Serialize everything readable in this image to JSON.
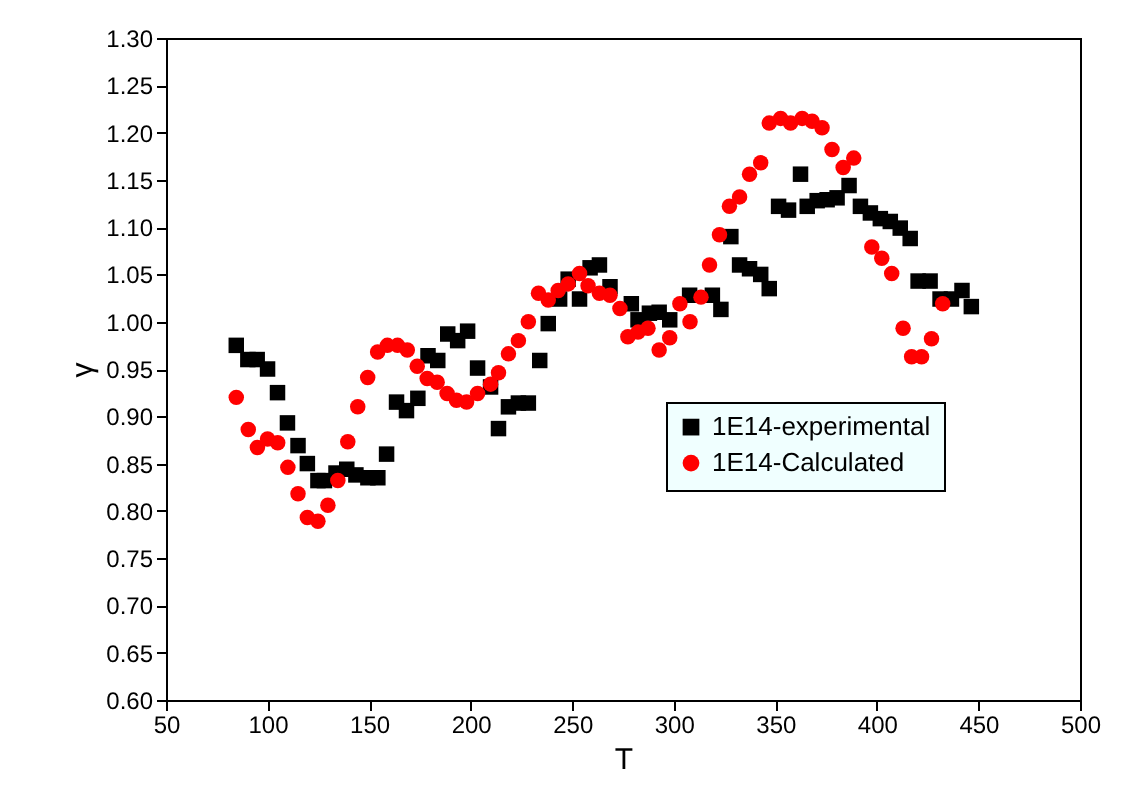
{
  "chart_data": {
    "type": "scatter",
    "xlabel": "T",
    "ylabel": "γ",
    "xlim": [
      50,
      500
    ],
    "ylim": [
      0.6,
      1.3
    ],
    "xticks": [
      50,
      100,
      150,
      200,
      250,
      300,
      350,
      400,
      450,
      500
    ],
    "yticks": [
      {
        "value": 0.6,
        "label": "0.60"
      },
      {
        "value": 0.65,
        "label": "0.65"
      },
      {
        "value": 0.7,
        "label": "0.70"
      },
      {
        "value": 0.75,
        "label": "0.75"
      },
      {
        "value": 0.8,
        "label": "0.80"
      },
      {
        "value": 0.85,
        "label": "0.85"
      },
      {
        "value": 0.9,
        "label": "0.90"
      },
      {
        "value": 0.95,
        "label": "0.95"
      },
      {
        "value": 1.0,
        "label": "1.00"
      },
      {
        "value": 1.05,
        "label": "1.05"
      },
      {
        "value": 1.1,
        "label": "1.10"
      },
      {
        "value": 1.15,
        "label": "1.15"
      },
      {
        "value": 1.2,
        "label": "1.20"
      },
      {
        "value": 1.25,
        "label": "1.25"
      },
      {
        "value": 1.3,
        "label": "1.30"
      }
    ],
    "legend": "right",
    "grid": false,
    "series": [
      {
        "name": "1E14-experimental",
        "color": "#000000",
        "marker": "square",
        "x": [
          84.6,
          90.3,
          94.9,
          100,
          104.9,
          109.8,
          115,
          119.6,
          124.8,
          128,
          133.7,
          139,
          143.5,
          149.4,
          154.3,
          158.6,
          163.5,
          168.4,
          174,
          179,
          183.8,
          188.7,
          193.6,
          198.5,
          203.4,
          209.8,
          213.7,
          218.6,
          223.5,
          228.4,
          234,
          238.2,
          243.8,
          248,
          253.6,
          258.8,
          263.4,
          268.6,
          279.1,
          282.4,
          288,
          292.8,
          298,
          307.8,
          319,
          323.2,
          328.1,
          332.4,
          337.3,
          342.8,
          347,
          351.6,
          356.5,
          362.4,
          365.7,
          370.6,
          375.5,
          380.4,
          386.3,
          391.9,
          396.8,
          401.7,
          406.6,
          411.5,
          416.4,
          420.3,
          426.2,
          431.1,
          436.7,
          441.9,
          446.5
        ],
        "values": [
          0.975,
          0.96,
          0.96,
          0.95,
          0.925,
          0.893,
          0.869,
          0.85,
          0.832,
          0.832,
          0.84,
          0.844,
          0.838,
          0.835,
          0.835,
          0.86,
          0.915,
          0.906,
          0.919,
          0.964,
          0.959,
          0.987,
          0.98,
          0.99,
          0.951,
          0.931,
          0.887,
          0.91,
          0.914,
          0.914,
          0.959,
          0.998,
          1.024,
          1.045,
          1.024,
          1.057,
          1.06,
          1.037,
          1.019,
          1.002,
          1.009,
          1.01,
          1.002,
          1.028,
          1.028,
          1.013,
          1.09,
          1.06,
          1.056,
          1.05,
          1.035,
          1.122,
          1.118,
          1.156,
          1.122,
          1.128,
          1.129,
          1.131,
          1.144,
          1.122,
          1.115,
          1.109,
          1.106,
          1.099,
          1.088,
          1.043,
          1.043,
          1.024,
          1.024,
          1.033,
          1.016
        ]
      },
      {
        "name": "1E14-Calculated",
        "color": "#ff0000",
        "marker": "circle",
        "x": [
          84.6,
          90.5,
          95,
          100,
          105,
          110,
          115,
          119.6,
          124.8,
          129.7,
          134.6,
          139.5,
          144.4,
          149.3,
          154.2,
          159,
          164,
          168.8,
          173.7,
          178.6,
          183.5,
          188.4,
          193,
          198,
          203.4,
          209.8,
          213.7,
          218.6,
          223.5,
          228.4,
          233.4,
          238.2,
          243.1,
          248,
          253.6,
          257.8,
          263.4,
          268.6,
          273.5,
          277.4,
          282.4,
          287.3,
          292.8,
          298,
          303,
          308,
          313.4,
          317.6,
          322.5,
          327.4,
          332.4,
          337.3,
          342.8,
          347,
          352.6,
          357.5,
          363.2,
          368.1,
          373,
          377.9,
          383.4,
          388.6,
          397.5,
          402.4,
          407.3,
          412.9,
          417.1,
          422,
          426.9,
          432.4
        ],
        "values": [
          0.92,
          0.886,
          0.867,
          0.876,
          0.872,
          0.846,
          0.818,
          0.793,
          0.789,
          0.806,
          0.832,
          0.873,
          0.91,
          0.941,
          0.968,
          0.975,
          0.975,
          0.97,
          0.953,
          0.94,
          0.936,
          0.924,
          0.917,
          0.915,
          0.924,
          0.934,
          0.946,
          0.966,
          0.98,
          1.0,
          1.03,
          1.023,
          1.033,
          1.04,
          1.051,
          1.038,
          1.03,
          1.028,
          1.014,
          0.984,
          0.989,
          0.993,
          0.97,
          0.983,
          1.019,
          1.0,
          1.026,
          1.06,
          1.092,
          1.122,
          1.132,
          1.156,
          1.168,
          1.21,
          1.215,
          1.21,
          1.215,
          1.212,
          1.205,
          1.182,
          1.163,
          1.173,
          1.079,
          1.067,
          1.051,
          0.993,
          0.963,
          0.963,
          0.982,
          1.019
        ]
      }
    ]
  }
}
